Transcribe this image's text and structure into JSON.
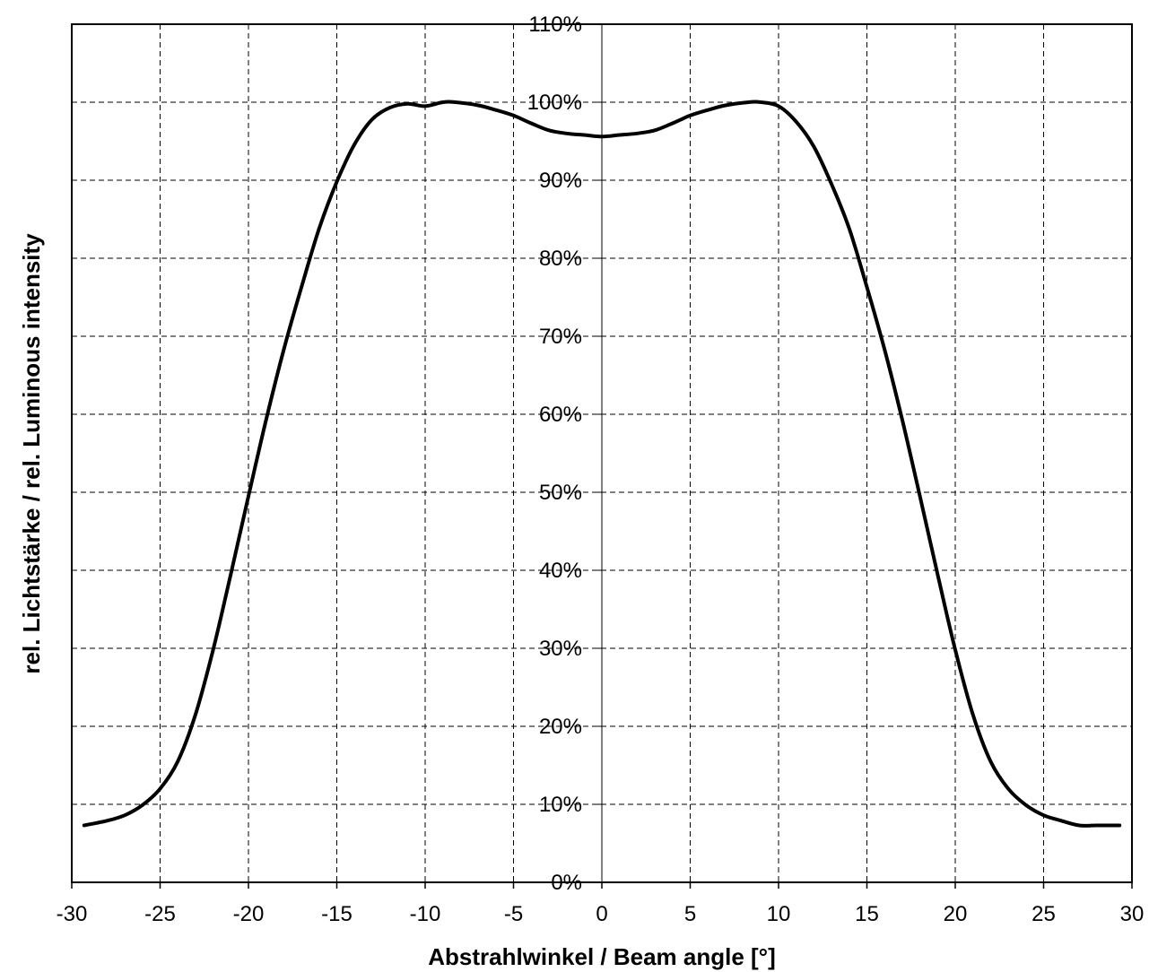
{
  "chart_data": {
    "type": "line",
    "title": "",
    "xlabel": "Abstrahlwinkel / Beam angle [°]",
    "ylabel": "rel. Lichtstärke / rel. Luminous intensity",
    "xlim": [
      -30,
      30
    ],
    "ylim": [
      0,
      110
    ],
    "x_ticks": [
      "-30",
      "-25",
      "-20",
      "-15",
      "-10",
      "-5",
      "0",
      "5",
      "10",
      "15",
      "20",
      "25",
      "30"
    ],
    "y_ticks": [
      "0%",
      "10%",
      "20%",
      "30%",
      "40%",
      "50%",
      "60%",
      "70%",
      "80%",
      "90%",
      "100%",
      "110%"
    ],
    "grid": true,
    "series": [
      {
        "color": "#000000",
        "x": [
          -29.3,
          -28,
          -27,
          -26,
          -25,
          -24,
          -23,
          -22,
          -21,
          -20,
          -19,
          -18,
          -17,
          -16,
          -15,
          -14,
          -13,
          -12,
          -11,
          -10,
          -9,
          -8.3,
          -7,
          -6,
          -5,
          -4,
          -3,
          -2,
          -1,
          0,
          1,
          2,
          3,
          4,
          5,
          6,
          7,
          8.3,
          9,
          10,
          11,
          12,
          13,
          14,
          15,
          16,
          17,
          18,
          19,
          20,
          21,
          22,
          23,
          24,
          25,
          26,
          27,
          28,
          29.3
        ],
        "y": [
          7.3,
          7.9,
          8.6,
          9.9,
          12,
          15.5,
          21.5,
          29.8,
          39.5,
          49.5,
          59.3,
          68.3,
          76.3,
          83.8,
          89.8,
          94.6,
          97.8,
          99.3,
          99.8,
          99.5,
          100,
          100,
          99.6,
          99,
          98.3,
          97.3,
          96.4,
          96,
          95.8,
          95.6,
          95.8,
          96,
          96.4,
          97.3,
          98.3,
          99,
          99.6,
          100,
          100,
          99.5,
          97.5,
          94.3,
          89.5,
          83.8,
          76.3,
          68.3,
          59.3,
          49.5,
          39.5,
          29.8,
          21.5,
          15.5,
          12,
          9.9,
          8.6,
          7.9,
          7.3,
          7.3,
          7.3
        ]
      }
    ]
  }
}
